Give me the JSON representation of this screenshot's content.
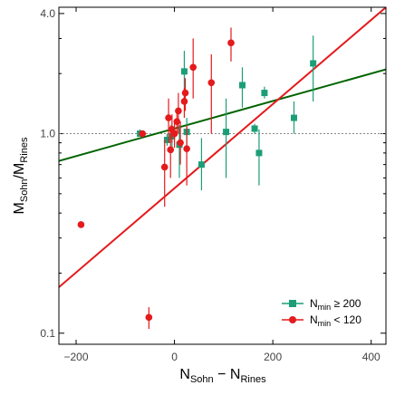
{
  "chart_data": {
    "type": "scatter",
    "xlabel": {
      "main": "N",
      "sub1": "Sohn",
      "minus": " − ",
      "main2": "N",
      "sub2": "Rines"
    },
    "ylabel": {
      "main": "M",
      "sub1": "Sohn",
      "slash": "/",
      "main2": "M",
      "sub2": "Rines"
    },
    "xlim": [
      -235,
      430
    ],
    "ylim": [
      0.088,
      4.3
    ],
    "y_scale": "log",
    "x_ticks": [
      -200,
      0,
      200,
      400
    ],
    "x_tick_labels": [
      "−200",
      "0",
      "200",
      "400"
    ],
    "y_ticks": [
      0.1,
      1.0,
      4.0
    ],
    "y_tick_labels": [
      "0.1",
      "1.0",
      "4.0"
    ],
    "y_minor_ticks": [
      0.2,
      0.3,
      0.4,
      0.5,
      0.6,
      0.7,
      0.8,
      0.9,
      2.0,
      3.0
    ],
    "reference_line_y": 1.0,
    "legend_position": "bottom-right",
    "series": [
      {
        "name": "N_min ≥ 200",
        "legend": {
          "main": "N",
          "sub": "min",
          "rest": " ≥ 200"
        },
        "color": "#1b9e77",
        "marker": "square",
        "points": [
          {
            "x": -70,
            "y": 1.0,
            "lo": 0.97,
            "hi": 1.05
          },
          {
            "x": -15,
            "y": 0.93,
            "lo": 0.87,
            "hi": 1.0
          },
          {
            "x": -5,
            "y": 0.97,
            "lo": 0.8,
            "hi": 1.12
          },
          {
            "x": 10,
            "y": 0.88,
            "lo": 0.6,
            "hi": 1.1
          },
          {
            "x": 20,
            "y": 2.05,
            "lo": 1.5,
            "hi": 2.6
          },
          {
            "x": 25,
            "y": 1.02,
            "lo": 0.8,
            "hi": 1.2
          },
          {
            "x": 55,
            "y": 0.7,
            "lo": 0.52,
            "hi": 0.95
          },
          {
            "x": 105,
            "y": 1.02,
            "lo": 0.6,
            "hi": 1.5
          },
          {
            "x": 138,
            "y": 1.75,
            "lo": 1.35,
            "hi": 2.15
          },
          {
            "x": 163,
            "y": 1.06,
            "lo": 1.0,
            "hi": 1.12
          },
          {
            "x": 172,
            "y": 0.8,
            "lo": 0.55,
            "hi": 1.05
          },
          {
            "x": 183,
            "y": 1.6,
            "lo": 1.5,
            "hi": 1.72
          },
          {
            "x": 243,
            "y": 1.2,
            "lo": 1.0,
            "hi": 1.45
          },
          {
            "x": 282,
            "y": 2.25,
            "lo": 1.45,
            "hi": 3.1
          }
        ],
        "fit": {
          "x_from": -235,
          "y_from": 0.73,
          "x_to": 430,
          "y_to": 2.1
        },
        "fit_color": "#006400"
      },
      {
        "name": "N_min < 120",
        "legend": {
          "main": "N",
          "sub": "min",
          "rest": " < 120"
        },
        "color": "#e41a1c",
        "marker": "circle",
        "points": [
          {
            "x": -190,
            "y": 0.35,
            "lo": 0.35,
            "hi": 0.35
          },
          {
            "x": -65,
            "y": 1.0,
            "lo": 1.0,
            "hi": 1.0
          },
          {
            "x": -52,
            "y": 0.12,
            "lo": 0.105,
            "hi": 0.135
          },
          {
            "x": -20,
            "y": 0.68,
            "lo": 0.43,
            "hi": 0.93
          },
          {
            "x": -12,
            "y": 1.2,
            "lo": 0.9,
            "hi": 1.5
          },
          {
            "x": -8,
            "y": 0.83,
            "lo": 0.6,
            "hi": 1.1
          },
          {
            "x": -5,
            "y": 1.05,
            "lo": 0.9,
            "hi": 1.25
          },
          {
            "x": 0,
            "y": 1.0,
            "lo": 0.85,
            "hi": 1.15
          },
          {
            "x": 5,
            "y": 1.15,
            "lo": 1.0,
            "hi": 1.3
          },
          {
            "x": 8,
            "y": 1.3,
            "lo": 1.0,
            "hi": 1.6
          },
          {
            "x": 12,
            "y": 0.9,
            "lo": 0.7,
            "hi": 1.15
          },
          {
            "x": 20,
            "y": 1.45,
            "lo": 1.2,
            "hi": 1.7
          },
          {
            "x": 22,
            "y": 1.6,
            "lo": 1.3,
            "hi": 1.9
          },
          {
            "x": 25,
            "y": 0.84,
            "lo": 0.55,
            "hi": 1.1
          },
          {
            "x": 38,
            "y": 2.15,
            "lo": 1.5,
            "hi": 3.0
          },
          {
            "x": 75,
            "y": 1.8,
            "lo": 1.0,
            "hi": 2.5
          },
          {
            "x": 115,
            "y": 2.85,
            "lo": 2.3,
            "hi": 3.4
          }
        ],
        "fit": {
          "x_from": -235,
          "y_from": 0.17,
          "x_to": 430,
          "y_to": 4.3
        },
        "fit_color": "#e41a1c"
      }
    ]
  }
}
